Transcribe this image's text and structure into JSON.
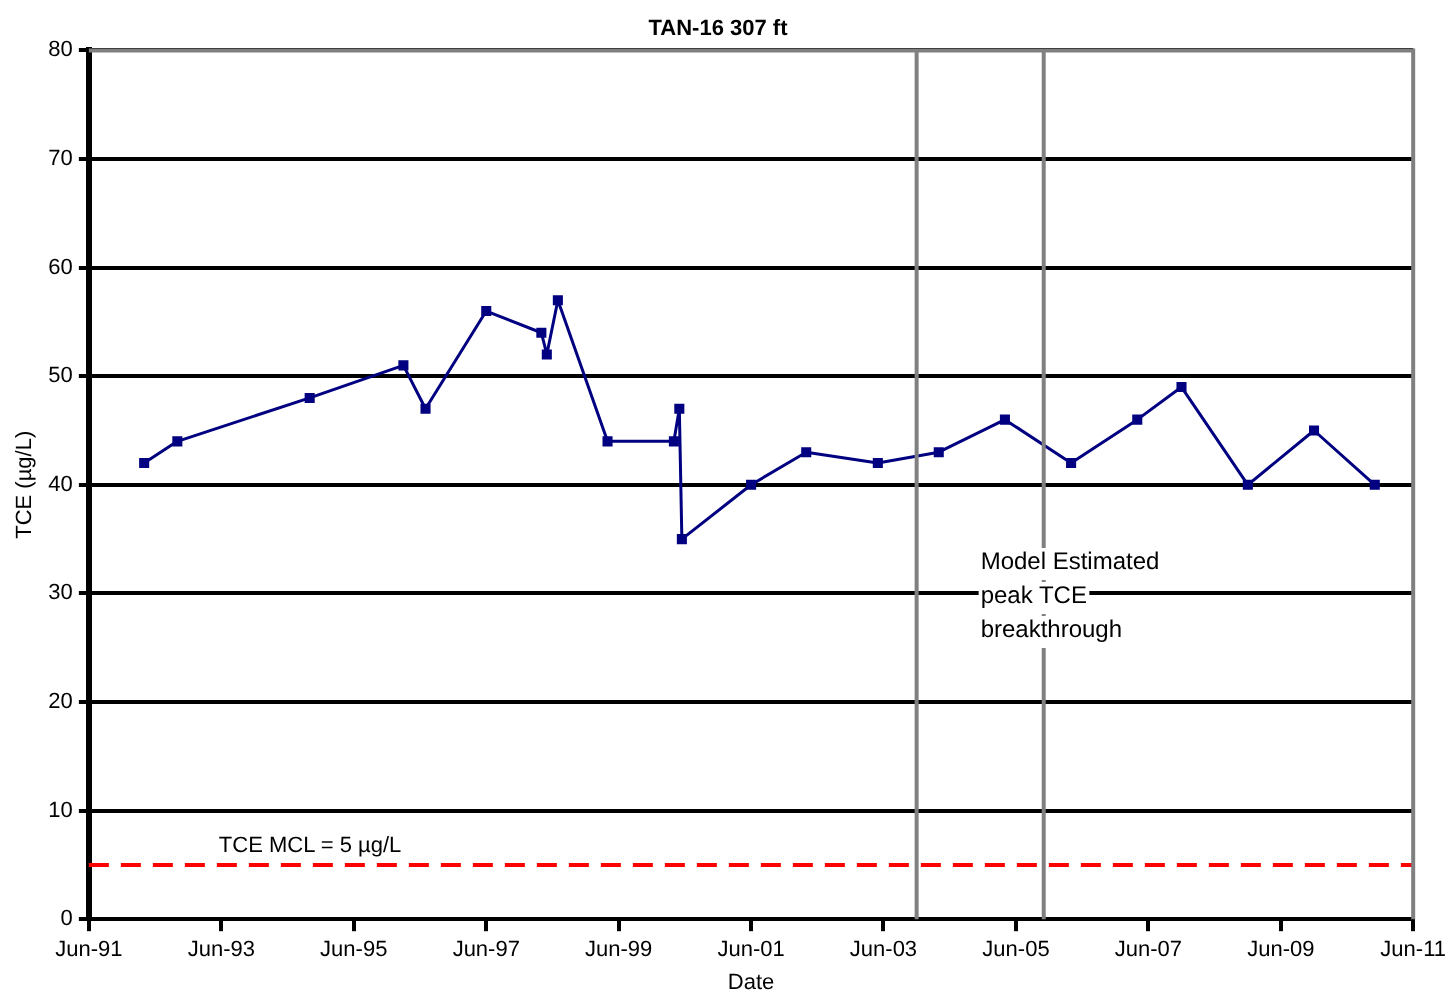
{
  "chart_data": {
    "type": "line",
    "title": "TAN-16 307 ft",
    "xlabel": "Date",
    "ylabel": "TCE (µg/L)",
    "series": [
      {
        "color": "#000080",
        "x": [
          "1992-04",
          "1992-10",
          "1994-10",
          "1996-03",
          "1996-07",
          "1997-06",
          "1998-04",
          "1998-05",
          "1998-07",
          "1999-04",
          "2000-04",
          "2000-05-01",
          "2000-05-15",
          "2001-06",
          "2002-04",
          "2003-05",
          "2004-04",
          "2005-04",
          "2006-04",
          "2007-04",
          "2007-12",
          "2008-12",
          "2009-12",
          "2010-11"
        ],
        "values": [
          42,
          44,
          48,
          51,
          47,
          56,
          54,
          52,
          57,
          44,
          44,
          47,
          35,
          40,
          43,
          42,
          43,
          46,
          42,
          46,
          49,
          40,
          45,
          40
        ]
      }
    ],
    "xlim": [
      "1991-06",
      "2011-06"
    ],
    "xticks": [
      {
        "value": "1991-06",
        "label": "Jun-91"
      },
      {
        "value": "1993-06",
        "label": "Jun-93"
      },
      {
        "value": "1995-06",
        "label": "Jun-95"
      },
      {
        "value": "1997-06",
        "label": "Jun-97"
      },
      {
        "value": "1999-06",
        "label": "Jun-99"
      },
      {
        "value": "2001-06",
        "label": "Jun-01"
      },
      {
        "value": "2003-06",
        "label": "Jun-03"
      },
      {
        "value": "2005-06",
        "label": "Jun-05"
      },
      {
        "value": "2007-06",
        "label": "Jun-07"
      },
      {
        "value": "2009-06",
        "label": "Jun-09"
      },
      {
        "value": "2011-06",
        "label": "Jun-11"
      }
    ],
    "ylim": [
      0,
      80
    ],
    "yticks": [
      0,
      10,
      20,
      30,
      40,
      50,
      60,
      70,
      80
    ],
    "grid": "y",
    "legend": false,
    "marker": "square",
    "line_style": "solid",
    "ref_lines": [
      {
        "axis": "y",
        "value": 5,
        "label": "TCE MCL = 5 µg/L",
        "color": "#ff0000",
        "line_style": "dashed"
      },
      {
        "axis": "x",
        "value": "2003-12",
        "color": "#808080",
        "line_style": "solid"
      },
      {
        "axis": "x",
        "value": "2005-11",
        "color": "#808080",
        "line_style": "solid"
      }
    ],
    "annotations": [
      "Model Estimated peak TCE breakthrough"
    ]
  }
}
